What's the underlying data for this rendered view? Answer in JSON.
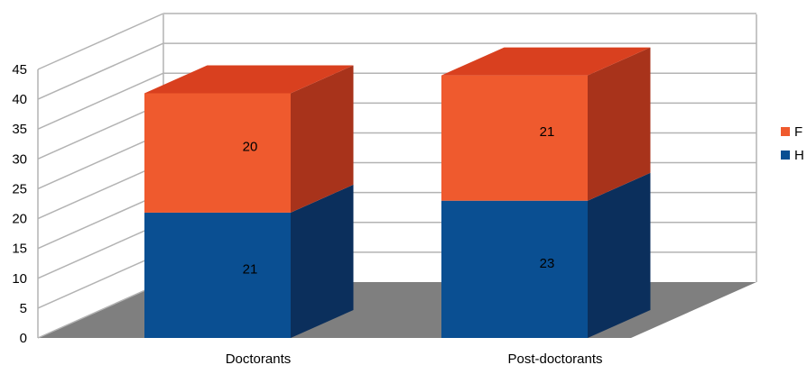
{
  "chart_data": {
    "type": "bar",
    "stacked": true,
    "three_d": true,
    "categories": [
      "Doctorants",
      "Post-doctorants"
    ],
    "series": [
      {
        "name": "H",
        "values": [
          21,
          23
        ],
        "color": "#0a4f92"
      },
      {
        "name": "F",
        "values": [
          20,
          21
        ],
        "color": "#ef5a2e"
      }
    ],
    "ylim": [
      0,
      45
    ],
    "yticks": [
      0,
      5,
      10,
      15,
      20,
      25,
      30,
      35,
      40,
      45
    ],
    "title": "",
    "xlabel": "",
    "ylabel": "",
    "grid": true,
    "legend_position": "right",
    "colors": {
      "grid": "#b3b3b3",
      "floor": "#7f7f7f",
      "h_side": "#0b2f5c",
      "h_top": "#0a4f92",
      "f_side": "#a8331b",
      "f_top": "#d9401f"
    }
  }
}
